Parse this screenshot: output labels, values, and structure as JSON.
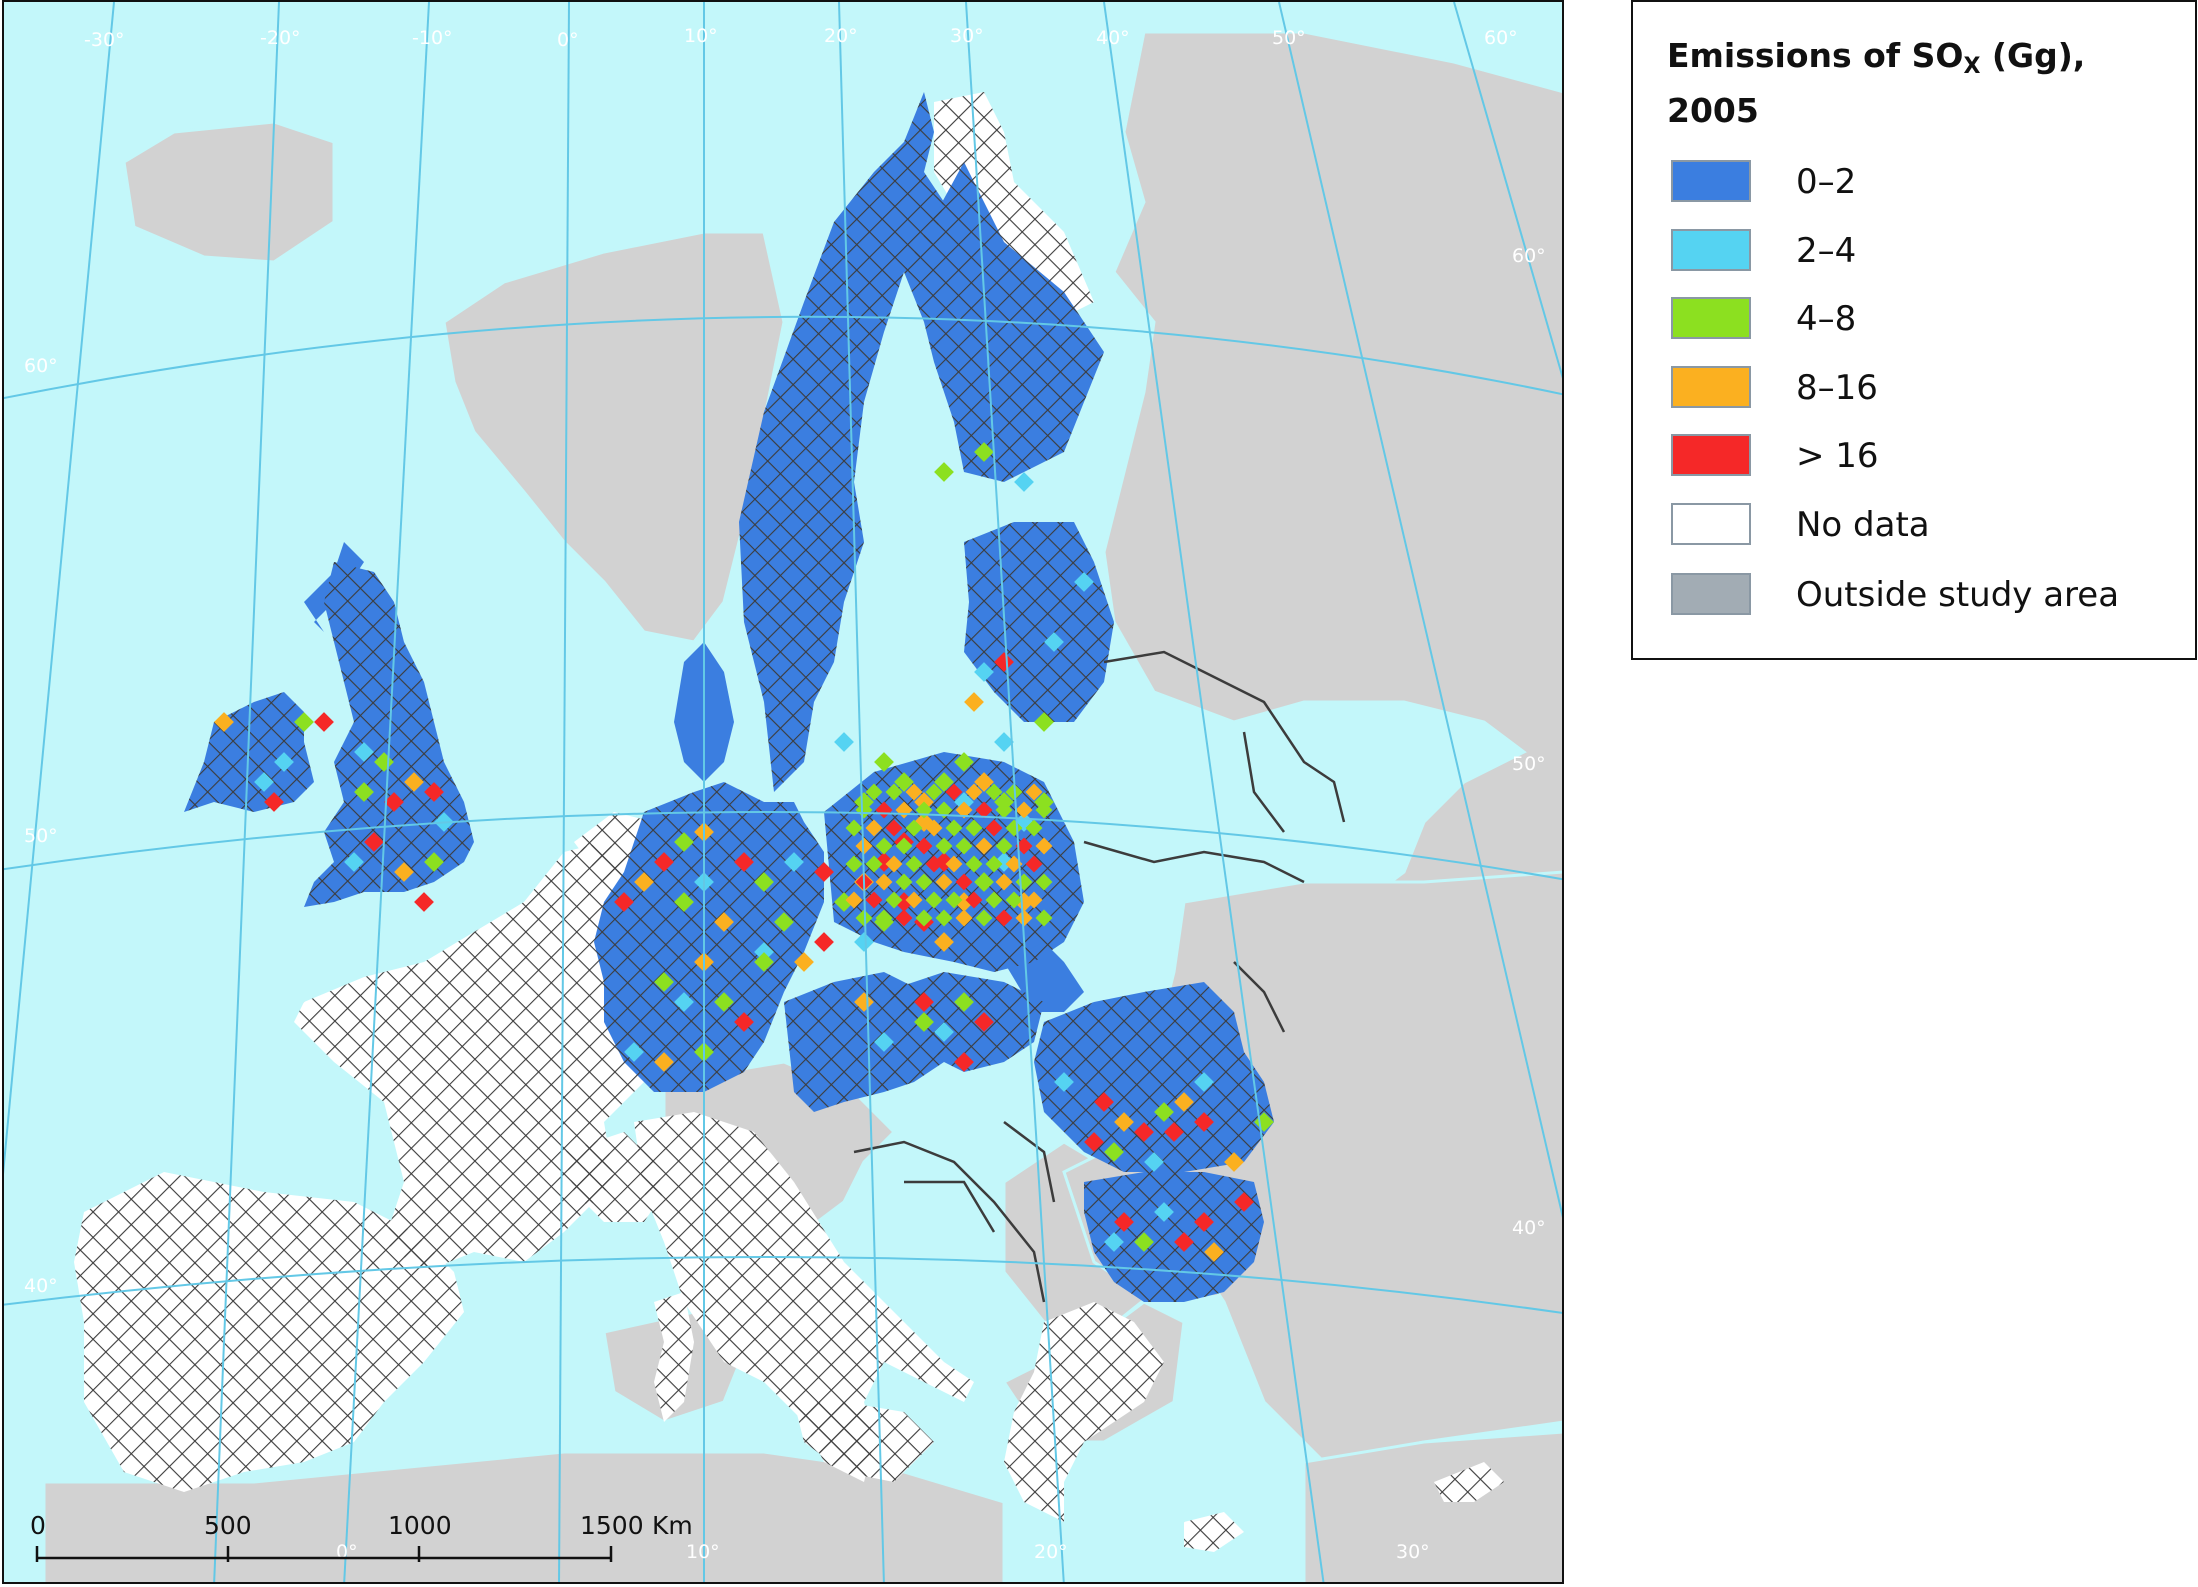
{
  "map": {
    "graticule_labels": {
      "top": [
        "-30°",
        "-20°",
        "-10°",
        "0°",
        "10°",
        "20°",
        "30°",
        "40°",
        "50°",
        "60°"
      ],
      "bottom": [
        "0°",
        "10°",
        "20°",
        "30°"
      ],
      "left": [
        "60°",
        "50°",
        "40°"
      ],
      "right": [
        "60°",
        "50°",
        "40°"
      ]
    },
    "scale_bar": {
      "ticks": [
        "0",
        "500",
        "1000",
        "1500"
      ],
      "unit": "Km"
    },
    "colors": {
      "sea": "#c3f7fa",
      "outside_land": "#d2d2d2",
      "border": "#3c3c3c",
      "graticule": "#63c8e6"
    }
  },
  "legend": {
    "title_prefix": "Emissions of SO",
    "title_subscript": "X",
    "title_suffix": " (Gg),",
    "title_line2": "2005",
    "items": [
      {
        "label": "0–2",
        "color": "#3b7ee0"
      },
      {
        "label": "2–4",
        "color": "#55d3f2"
      },
      {
        "label": "4–8",
        "color": "#8ce020"
      },
      {
        "label": "8–16",
        "color": "#fbb020"
      },
      {
        "label": "> 16",
        "color": "#f52828"
      },
      {
        "label": "No data",
        "color": "#ffffff"
      },
      {
        "label": "Outside study area",
        "color": "#a2acb4"
      }
    ]
  }
}
